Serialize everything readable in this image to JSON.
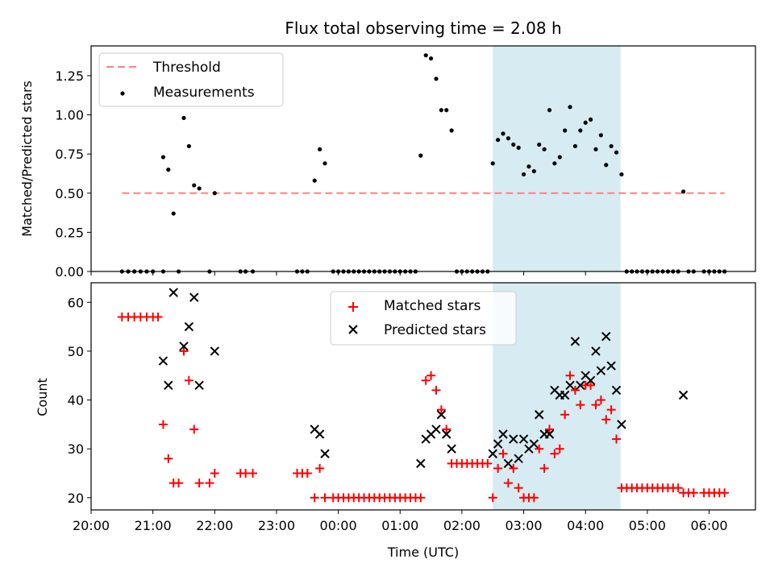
{
  "title": "Flux total observing time = 2.08 h",
  "colors": {
    "threshold": "#ff8080",
    "measurements": "#000000",
    "matched": "#ff0000",
    "predicted": "#000000",
    "shade": "#add8e6"
  },
  "chart_data": [
    {
      "type": "scatter",
      "panel": "top",
      "xlabel": "",
      "ylabel": "Matched/Predicted stars",
      "x_is_time": true,
      "xlim": [
        "20:00",
        "06:45"
      ],
      "ylim": [
        0,
        1.44
      ],
      "yticks": [
        "0.00",
        "0.25",
        "0.50",
        "0.75",
        "1.00",
        "1.25"
      ],
      "legend_position": "upper left",
      "shaded_span": [
        "02:30",
        "04:34"
      ],
      "series": [
        {
          "name": "Threshold",
          "style": "dashed-line",
          "x": [
            "20:30",
            "06:15"
          ],
          "y": [
            0.5,
            0.5
          ]
        },
        {
          "name": "Measurements",
          "style": "dot",
          "points": [
            [
              "20:30",
              0
            ],
            [
              "20:36",
              0
            ],
            [
              "20:42",
              0
            ],
            [
              "20:48",
              0
            ],
            [
              "20:54",
              0
            ],
            [
              "21:00",
              0
            ],
            [
              "21:10",
              0
            ],
            [
              "21:10",
              0.73
            ],
            [
              "21:15",
              0.65
            ],
            [
              "21:20",
              0.37
            ],
            [
              "21:25",
              0
            ],
            [
              "21:30",
              0.98
            ],
            [
              "21:35",
              0.8
            ],
            [
              "21:40",
              0.55
            ],
            [
              "21:45",
              0.53
            ],
            [
              "21:55",
              0
            ],
            [
              "22:00",
              0.5
            ],
            [
              "22:25",
              0
            ],
            [
              "22:30",
              0
            ],
            [
              "22:37",
              0
            ],
            [
              "23:20",
              0
            ],
            [
              "23:25",
              0
            ],
            [
              "23:30",
              0
            ],
            [
              "23:37",
              0.58
            ],
            [
              "23:42",
              0.78
            ],
            [
              "23:47",
              0.69
            ],
            [
              "23:55",
              0
            ],
            [
              "00:00",
              0
            ],
            [
              "00:05",
              0
            ],
            [
              "00:10",
              0
            ],
            [
              "00:15",
              0
            ],
            [
              "00:20",
              0
            ],
            [
              "00:25",
              0
            ],
            [
              "00:30",
              0
            ],
            [
              "00:35",
              0
            ],
            [
              "00:40",
              0
            ],
            [
              "00:45",
              0
            ],
            [
              "00:50",
              0
            ],
            [
              "00:55",
              0
            ],
            [
              "01:00",
              0
            ],
            [
              "01:05",
              0
            ],
            [
              "01:10",
              0
            ],
            [
              "01:15",
              0
            ],
            [
              "01:20",
              0.74
            ],
            [
              "01:25",
              1.38
            ],
            [
              "01:30",
              1.36
            ],
            [
              "01:35",
              1.23
            ],
            [
              "01:40",
              1.03
            ],
            [
              "01:45",
              1.03
            ],
            [
              "01:50",
              0.9
            ],
            [
              "01:55",
              0
            ],
            [
              "02:00",
              0
            ],
            [
              "02:05",
              0
            ],
            [
              "02:10",
              0
            ],
            [
              "02:15",
              0
            ],
            [
              "02:20",
              0
            ],
            [
              "02:25",
              0
            ],
            [
              "02:30",
              0.69
            ],
            [
              "02:35",
              0.84
            ],
            [
              "02:40",
              0.88
            ],
            [
              "02:45",
              0.85
            ],
            [
              "02:50",
              0.81
            ],
            [
              "02:55",
              0.79
            ],
            [
              "03:00",
              0.62
            ],
            [
              "03:05",
              0.67
            ],
            [
              "03:10",
              0.64
            ],
            [
              "03:15",
              0.81
            ],
            [
              "03:20",
              0.78
            ],
            [
              "03:25",
              1.03
            ],
            [
              "03:30",
              0.69
            ],
            [
              "03:35",
              0.73
            ],
            [
              "03:40",
              0.9
            ],
            [
              "03:45",
              1.05
            ],
            [
              "03:50",
              0.8
            ],
            [
              "03:55",
              0.9
            ],
            [
              "04:00",
              0.95
            ],
            [
              "04:05",
              0.97
            ],
            [
              "04:10",
              0.78
            ],
            [
              "04:15",
              0.87
            ],
            [
              "04:20",
              0.68
            ],
            [
              "04:25",
              0.8
            ],
            [
              "04:30",
              0.76
            ],
            [
              "04:35",
              0.62
            ],
            [
              "04:40",
              0
            ],
            [
              "04:45",
              0
            ],
            [
              "04:50",
              0
            ],
            [
              "04:55",
              0
            ],
            [
              "05:00",
              0
            ],
            [
              "05:05",
              0
            ],
            [
              "05:10",
              0
            ],
            [
              "05:15",
              0
            ],
            [
              "05:20",
              0
            ],
            [
              "05:25",
              0
            ],
            [
              "05:30",
              0
            ],
            [
              "05:35",
              0.51
            ],
            [
              "05:40",
              0
            ],
            [
              "05:45",
              0
            ],
            [
              "05:55",
              0
            ],
            [
              "06:00",
              0
            ],
            [
              "06:05",
              0
            ],
            [
              "06:10",
              0
            ],
            [
              "06:15",
              0
            ]
          ]
        }
      ]
    },
    {
      "type": "scatter",
      "panel": "bottom",
      "xlabel": "Time (UTC)",
      "ylabel": "Count",
      "x_is_time": true,
      "xlim": [
        "20:00",
        "06:45"
      ],
      "ylim": [
        17.5,
        64
      ],
      "yticks": [
        "20",
        "30",
        "40",
        "50",
        "60"
      ],
      "xticks": [
        "20:00",
        "21:00",
        "22:00",
        "23:00",
        "00:00",
        "01:00",
        "02:00",
        "03:00",
        "04:00",
        "05:00",
        "06:00"
      ],
      "legend_position": "upper center",
      "shaded_span": [
        "02:30",
        "04:34"
      ],
      "series": [
        {
          "name": "Matched stars",
          "style": "plus",
          "points": [
            [
              "20:30",
              57
            ],
            [
              "20:36",
              57
            ],
            [
              "20:42",
              57
            ],
            [
              "20:48",
              57
            ],
            [
              "20:54",
              57
            ],
            [
              "21:00",
              57
            ],
            [
              "21:05",
              57
            ],
            [
              "21:10",
              35
            ],
            [
              "21:15",
              28
            ],
            [
              "21:20",
              23
            ],
            [
              "21:25",
              23
            ],
            [
              "21:30",
              50
            ],
            [
              "21:35",
              44
            ],
            [
              "21:40",
              34
            ],
            [
              "21:45",
              23
            ],
            [
              "21:55",
              23
            ],
            [
              "22:00",
              25
            ],
            [
              "22:25",
              25
            ],
            [
              "22:30",
              25
            ],
            [
              "22:37",
              25
            ],
            [
              "23:20",
              25
            ],
            [
              "23:25",
              25
            ],
            [
              "23:30",
              25
            ],
            [
              "23:37",
              20
            ],
            [
              "23:42",
              26
            ],
            [
              "23:47",
              20
            ],
            [
              "23:55",
              20
            ],
            [
              "00:00",
              20
            ],
            [
              "00:05",
              20
            ],
            [
              "00:10",
              20
            ],
            [
              "00:15",
              20
            ],
            [
              "00:20",
              20
            ],
            [
              "00:25",
              20
            ],
            [
              "00:30",
              20
            ],
            [
              "00:35",
              20
            ],
            [
              "00:40",
              20
            ],
            [
              "00:45",
              20
            ],
            [
              "00:50",
              20
            ],
            [
              "00:55",
              20
            ],
            [
              "01:00",
              20
            ],
            [
              "01:05",
              20
            ],
            [
              "01:10",
              20
            ],
            [
              "01:15",
              20
            ],
            [
              "01:20",
              20
            ],
            [
              "01:25",
              44
            ],
            [
              "01:30",
              45
            ],
            [
              "01:35",
              42
            ],
            [
              "01:40",
              38
            ],
            [
              "01:45",
              34
            ],
            [
              "01:50",
              27
            ],
            [
              "01:55",
              27
            ],
            [
              "02:00",
              27
            ],
            [
              "02:05",
              27
            ],
            [
              "02:10",
              27
            ],
            [
              "02:15",
              27
            ],
            [
              "02:20",
              27
            ],
            [
              "02:25",
              27
            ],
            [
              "02:30",
              20
            ],
            [
              "02:35",
              26
            ],
            [
              "02:40",
              29
            ],
            [
              "02:45",
              23
            ],
            [
              "02:50",
              26
            ],
            [
              "02:55",
              22
            ],
            [
              "03:00",
              20
            ],
            [
              "03:05",
              20
            ],
            [
              "03:10",
              20
            ],
            [
              "03:15",
              30
            ],
            [
              "03:20",
              26
            ],
            [
              "03:25",
              34
            ],
            [
              "03:30",
              29
            ],
            [
              "03:35",
              30
            ],
            [
              "03:40",
              37
            ],
            [
              "03:45",
              45
            ],
            [
              "03:50",
              42
            ],
            [
              "03:55",
              39
            ],
            [
              "04:00",
              43
            ],
            [
              "04:05",
              43
            ],
            [
              "04:10",
              39
            ],
            [
              "04:15",
              40
            ],
            [
              "04:20",
              36
            ],
            [
              "04:25",
              38
            ],
            [
              "04:30",
              32
            ],
            [
              "04:35",
              22
            ],
            [
              "04:40",
              22
            ],
            [
              "04:45",
              22
            ],
            [
              "04:50",
              22
            ],
            [
              "04:55",
              22
            ],
            [
              "05:00",
              22
            ],
            [
              "05:05",
              22
            ],
            [
              "05:10",
              22
            ],
            [
              "05:15",
              22
            ],
            [
              "05:20",
              22
            ],
            [
              "05:25",
              22
            ],
            [
              "05:30",
              22
            ],
            [
              "05:35",
              21
            ],
            [
              "05:40",
              21
            ],
            [
              "05:45",
              21
            ],
            [
              "05:55",
              21
            ],
            [
              "06:00",
              21
            ],
            [
              "06:05",
              21
            ],
            [
              "06:10",
              21
            ],
            [
              "06:15",
              21
            ]
          ]
        },
        {
          "name": "Predicted stars",
          "style": "x",
          "points": [
            [
              "21:10",
              48
            ],
            [
              "21:15",
              43
            ],
            [
              "21:20",
              62
            ],
            [
              "21:30",
              51
            ],
            [
              "21:35",
              55
            ],
            [
              "21:40",
              61
            ],
            [
              "21:45",
              43
            ],
            [
              "22:00",
              50
            ],
            [
              "23:37",
              34
            ],
            [
              "23:42",
              33
            ],
            [
              "23:47",
              29
            ],
            [
              "01:20",
              27
            ],
            [
              "01:25",
              32
            ],
            [
              "01:30",
              33
            ],
            [
              "01:35",
              34
            ],
            [
              "01:40",
              37
            ],
            [
              "01:45",
              33
            ],
            [
              "01:50",
              30
            ],
            [
              "02:30",
              29
            ],
            [
              "02:35",
              31
            ],
            [
              "02:40",
              33
            ],
            [
              "02:45",
              27
            ],
            [
              "02:50",
              32
            ],
            [
              "02:55",
              28
            ],
            [
              "03:00",
              32
            ],
            [
              "03:05",
              30
            ],
            [
              "03:10",
              31
            ],
            [
              "03:15",
              37
            ],
            [
              "03:20",
              33
            ],
            [
              "03:25",
              33
            ],
            [
              "03:30",
              42
            ],
            [
              "03:35",
              41
            ],
            [
              "03:40",
              41
            ],
            [
              "03:45",
              43
            ],
            [
              "03:50",
              52
            ],
            [
              "03:55",
              43
            ],
            [
              "04:00",
              45
            ],
            [
              "04:05",
              44
            ],
            [
              "04:10",
              50
            ],
            [
              "04:15",
              46
            ],
            [
              "04:20",
              53
            ],
            [
              "04:25",
              47
            ],
            [
              "04:30",
              42
            ],
            [
              "04:35",
              35
            ],
            [
              "05:35",
              41
            ]
          ]
        }
      ]
    }
  ]
}
